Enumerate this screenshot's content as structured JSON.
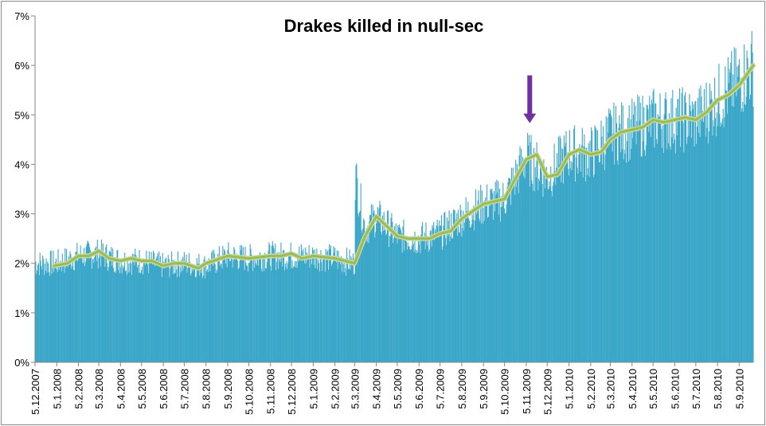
{
  "chart_data": {
    "type": "bar",
    "title": "Drakes killed in null-sec",
    "xlabel": "",
    "ylabel": "",
    "ylim": [
      0,
      7
    ],
    "y_ticks": [
      "0%",
      "1%",
      "2%",
      "3%",
      "4%",
      "5%",
      "6%",
      "7%"
    ],
    "x_tick_labels": [
      "5.12.2007",
      "5.1.2008",
      "5.2.2008",
      "5.3.2008",
      "5.4.2008",
      "5.5.2008",
      "5.6.2008",
      "5.7.2008",
      "5.8.2008",
      "5.9.2008",
      "5.10.2008",
      "5.11.2008",
      "5.12.2008",
      "5.1.2009",
      "5.2.2009",
      "5.3.2009",
      "5.4.2009",
      "5.5.2009",
      "5.6.2009",
      "5.7.2009",
      "5.8.2009",
      "5.9.2009",
      "5.10.2009",
      "5.11.2009",
      "5.12.2009",
      "5.1.2010",
      "5.2.2010",
      "5.3.2010",
      "5.4.2010",
      "5.5.2010",
      "5.6.2010",
      "5.7.2010",
      "5.8.2010",
      "5.9.2010"
    ],
    "grid": false,
    "legend": "none",
    "colors": {
      "bars": "#3aa6c8",
      "trend": "#9bbb59",
      "marker": "#7030a0"
    },
    "bar_series_anchors": [
      [
        "5.12.2007",
        2.0
      ],
      [
        "5.1.2008",
        2.0
      ],
      [
        "5.2.2008",
        2.15
      ],
      [
        "5.3.2008",
        2.2
      ],
      [
        "5.4.2008",
        2.05
      ],
      [
        "5.5.2008",
        2.05
      ],
      [
        "5.6.2008",
        1.95
      ],
      [
        "5.7.2008",
        2.0
      ],
      [
        "5.8.2008",
        1.95
      ],
      [
        "5.9.2008",
        2.15
      ],
      [
        "5.10.2008",
        2.1
      ],
      [
        "5.11.2008",
        2.15
      ],
      [
        "5.12.2008",
        2.15
      ],
      [
        "5.1.2009",
        2.15
      ],
      [
        "5.2.2009",
        2.1
      ],
      [
        "5.3.2009",
        2.0
      ],
      [
        "6.3.2009",
        3.8
      ],
      [
        "20.3.2009",
        2.7
      ],
      [
        "5.4.2009",
        2.95
      ],
      [
        "5.5.2009",
        2.55
      ],
      [
        "5.6.2009",
        2.5
      ],
      [
        "5.7.2009",
        2.6
      ],
      [
        "5.8.2009",
        2.95
      ],
      [
        "5.9.2009",
        3.2
      ],
      [
        "5.10.2009",
        3.3
      ],
      [
        "5.11.2009",
        4.15
      ],
      [
        "5.12.2009",
        3.75
      ],
      [
        "5.1.2010",
        4.25
      ],
      [
        "5.2.2010",
        4.2
      ],
      [
        "5.3.2010",
        4.6
      ],
      [
        "5.4.2010",
        4.7
      ],
      [
        "5.5.2010",
        4.9
      ],
      [
        "5.6.2010",
        4.9
      ],
      [
        "5.7.2010",
        4.9
      ],
      [
        "5.8.2010",
        5.3
      ],
      [
        "5.9.2010",
        5.7
      ],
      [
        "25.9.2010",
        6.0
      ]
    ],
    "trend_line": {
      "x": [
        "1.1.2008",
        "20.1.2008",
        "5.2.2008",
        "20.2.2008",
        "5.3.2008",
        "20.3.2008",
        "5.4.2008",
        "20.4.2008",
        "5.5.2008",
        "20.5.2008",
        "5.6.2008",
        "20.6.2008",
        "5.7.2008",
        "25.7.2008",
        "5.8.2008",
        "5.9.2008",
        "5.10.2008",
        "5.11.2008",
        "20.11.2008",
        "5.12.2008",
        "20.12.2008",
        "5.1.2009",
        "5.2.2009",
        "5.3.2009",
        "20.3.2009",
        "5.4.2009",
        "20.4.2009",
        "5.5.2009",
        "20.5.2009",
        "5.6.2009",
        "20.6.2009",
        "5.7.2009",
        "20.7.2009",
        "5.8.2009",
        "20.8.2009",
        "5.9.2009",
        "20.9.2009",
        "5.10.2009",
        "20.10.2009",
        "5.11.2009",
        "20.11.2009",
        "5.12.2009",
        "20.12.2009",
        "5.1.2010",
        "20.1.2010",
        "5.2.2010",
        "20.2.2010",
        "5.3.2010",
        "20.3.2010",
        "5.4.2010",
        "20.4.2010",
        "5.5.2010",
        "20.5.2010",
        "5.6.2010",
        "20.6.2010",
        "5.7.2010",
        "20.7.2010",
        "5.8.2010",
        "20.8.2010",
        "5.9.2010",
        "15.9.2010",
        "25.9.2010"
      ],
      "y": [
        1.95,
        2.0,
        2.15,
        2.15,
        2.25,
        2.1,
        2.05,
        2.1,
        2.05,
        2.05,
        1.95,
        2.0,
        2.0,
        1.9,
        2.0,
        2.15,
        2.1,
        2.15,
        2.15,
        2.2,
        2.1,
        2.15,
        2.1,
        2.0,
        2.55,
        2.95,
        2.75,
        2.55,
        2.5,
        2.5,
        2.5,
        2.6,
        2.65,
        2.9,
        3.05,
        3.2,
        3.25,
        3.3,
        3.7,
        4.1,
        4.2,
        3.75,
        3.8,
        4.2,
        4.3,
        4.2,
        4.25,
        4.5,
        4.65,
        4.7,
        4.75,
        4.9,
        4.85,
        4.9,
        4.95,
        4.9,
        5.05,
        5.3,
        5.4,
        5.6,
        5.8,
        6.0
      ]
    },
    "annotations": [
      {
        "type": "down-arrow",
        "x": "10.11.2009",
        "y": 5.8
      }
    ]
  }
}
